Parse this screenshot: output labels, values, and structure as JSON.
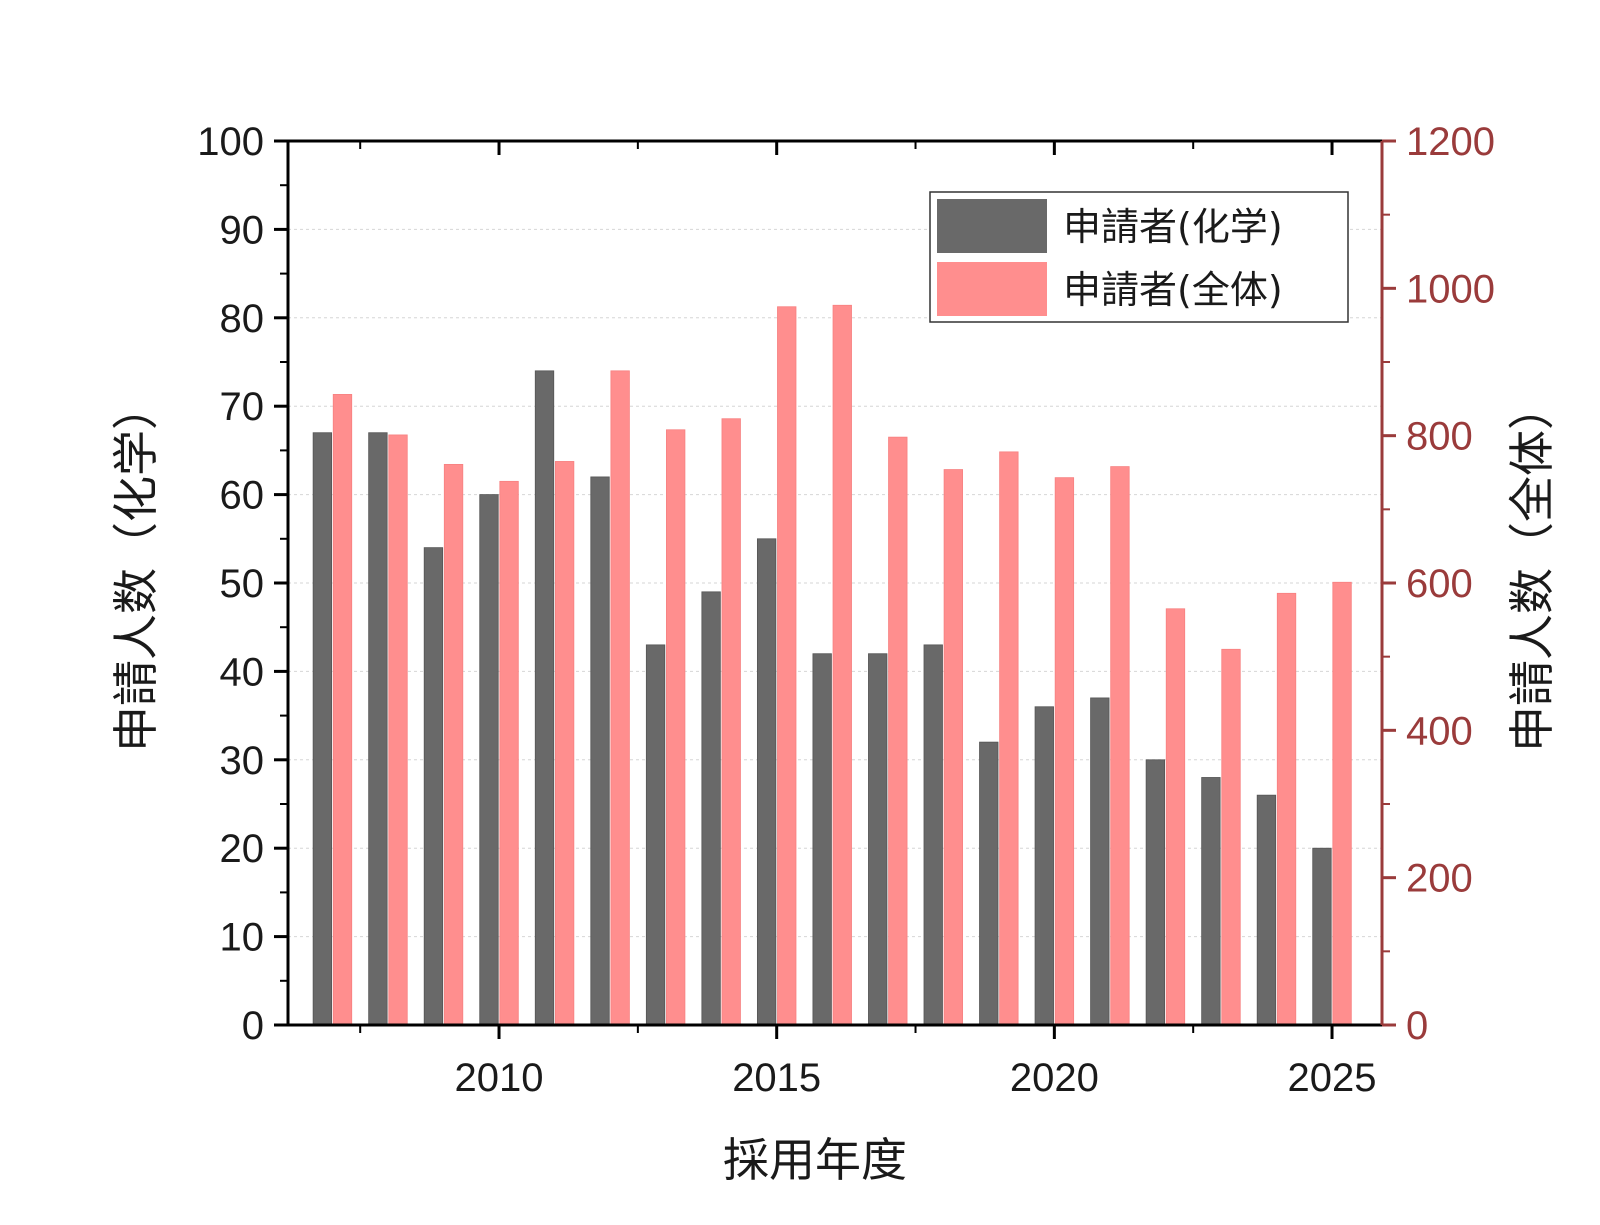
{
  "chart_data": {
    "type": "bar",
    "x": [
      2007,
      2008,
      2009,
      2010,
      2011,
      2012,
      2013,
      2014,
      2015,
      2016,
      2017,
      2018,
      2019,
      2020,
      2021,
      2022,
      2023,
      2024,
      2025
    ],
    "series": [
      {
        "name": "申請者(化学)",
        "axis": "left",
        "color": "#696969",
        "values": [
          67,
          67,
          54,
          60,
          74,
          62,
          43,
          49,
          55,
          42,
          42,
          43,
          32,
          36,
          37,
          30,
          28,
          26,
          20
        ]
      },
      {
        "name": "申請者(全体)",
        "axis": "right",
        "color": "#ff8e8e",
        "values": [
          856,
          801,
          761,
          738,
          765,
          888,
          808,
          823,
          975,
          977,
          798,
          754,
          778,
          743,
          758,
          565,
          510,
          586,
          601
        ]
      }
    ],
    "xlabel": "採用年度",
    "ylabel_left": "申請人数（化学）",
    "ylabel_right": "申請人数（全体）",
    "ylim_left": [
      0,
      100
    ],
    "ylim_right": [
      0,
      1200
    ],
    "xlim": [
      2006.2,
      2025.9
    ],
    "x_ticks": [
      2010,
      2015,
      2020,
      2025
    ],
    "y_ticks_left": [
      0,
      10,
      20,
      30,
      40,
      50,
      60,
      70,
      80,
      90,
      100
    ],
    "y_ticks_right": [
      0,
      200,
      400,
      600,
      800,
      1000,
      1200
    ],
    "grid": true,
    "legend_position": "top-right",
    "right_axis_color": "#9a3b3b"
  }
}
